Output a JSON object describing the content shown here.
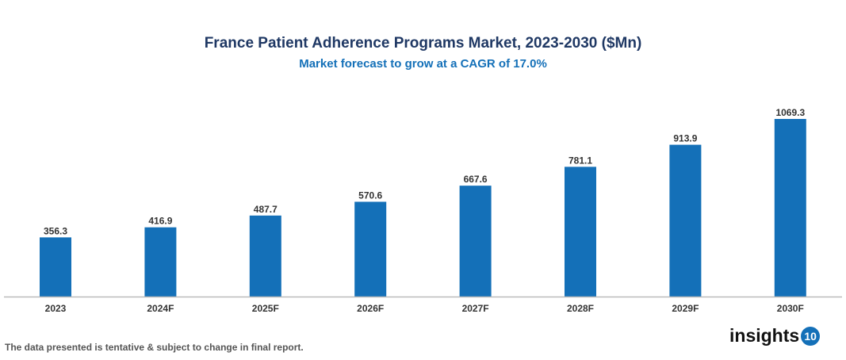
{
  "chart_data": {
    "type": "bar",
    "title": "France Patient Adherence Programs Market, 2023-2030 ($Mn)",
    "subtitle": "Market forecast to grow at a CAGR of 17.0%",
    "categories": [
      "2023",
      "2024F",
      "2025F",
      "2026F",
      "2027F",
      "2028F",
      "2029F",
      "2030F"
    ],
    "values": [
      356.3,
      416.9,
      487.7,
      570.6,
      667.6,
      781.1,
      913.9,
      1069.3
    ],
    "value_labels": [
      "356.3",
      "416.9",
      "487.7",
      "570.6",
      "667.6",
      "781.1",
      "913.9",
      "1069.3"
    ],
    "xlabel": "",
    "ylabel": "",
    "ylim": [
      0,
      1069.3
    ],
    "grid": false,
    "bar_color": "#1470b8"
  },
  "footer": {
    "note": "The data presented is tentative & subject to change in final report.",
    "logo_text": "insights",
    "logo_number": "10"
  }
}
